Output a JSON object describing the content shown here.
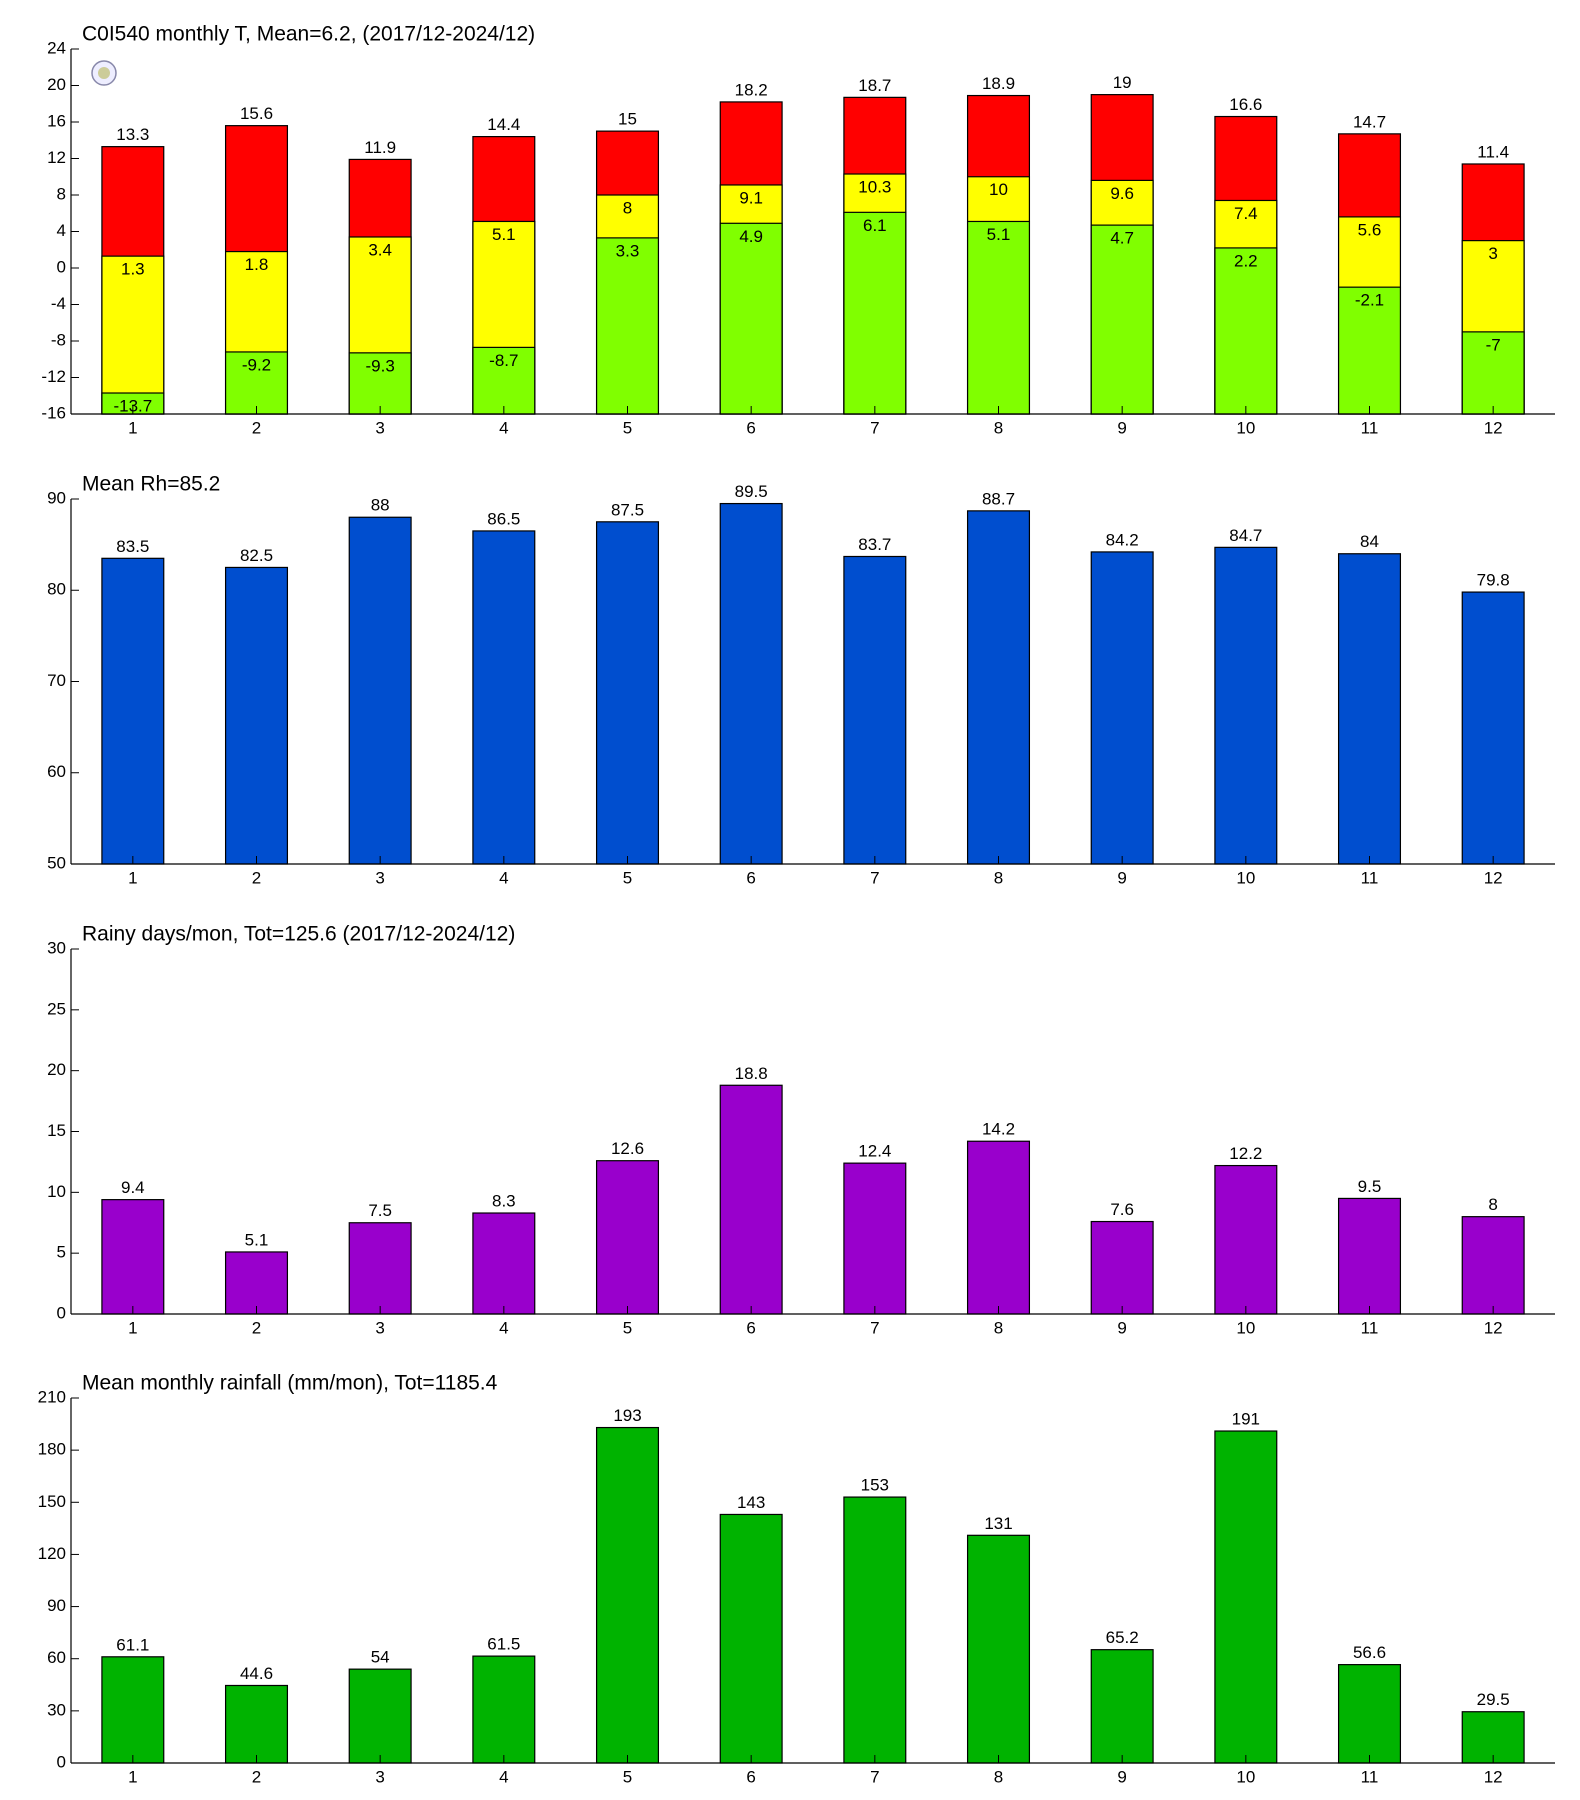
{
  "chart_data": [
    {
      "type": "bar",
      "title": "C0I540 monthly T, Mean=6.2, (2017/12-2024/12)",
      "categories": [
        "1",
        "2",
        "3",
        "4",
        "5",
        "6",
        "7",
        "8",
        "9",
        "10",
        "11",
        "12"
      ],
      "series": [
        {
          "color": "#ff0000",
          "values": [
            13.3,
            15.6,
            11.9,
            14.4,
            15,
            18.2,
            18.7,
            18.9,
            19,
            16.6,
            14.7,
            11.4
          ]
        },
        {
          "color": "#ffff00",
          "values": [
            1.3,
            1.8,
            3.4,
            5.1,
            8,
            9.1,
            10.3,
            10,
            9.6,
            7.4,
            5.6,
            3
          ]
        },
        {
          "color": "#80ff00",
          "values": [
            -13.7,
            -9.2,
            -9.3,
            -8.7,
            3.3,
            4.9,
            6.1,
            5.1,
            4.7,
            2.2,
            -2.1,
            -7
          ]
        }
      ],
      "ylim": [
        -16,
        24
      ],
      "yticks": [
        -16,
        -12,
        -8,
        -4,
        0,
        4,
        8,
        12,
        16,
        20,
        24
      ]
    },
    {
      "type": "bar",
      "title": "Mean Rh=85.2",
      "categories": [
        "1",
        "2",
        "3",
        "4",
        "5",
        "6",
        "7",
        "8",
        "9",
        "10",
        "11",
        "12"
      ],
      "series": [
        {
          "color": "#004ecf",
          "values": [
            83.5,
            82.5,
            88,
            86.5,
            87.5,
            89.5,
            83.7,
            88.7,
            84.2,
            84.7,
            84,
            79.8
          ]
        }
      ],
      "ylim": [
        50,
        90
      ],
      "yticks": [
        50,
        60,
        70,
        80,
        90
      ]
    },
    {
      "type": "bar",
      "title": "Rainy days/mon, Tot=125.6 (2017/12-2024/12)",
      "categories": [
        "1",
        "2",
        "3",
        "4",
        "5",
        "6",
        "7",
        "8",
        "9",
        "10",
        "11",
        "12"
      ],
      "series": [
        {
          "color": "#9900cc",
          "values": [
            9.4,
            5.1,
            7.5,
            8.3,
            12.6,
            18.8,
            12.4,
            14.2,
            7.6,
            12.2,
            9.5,
            8
          ]
        }
      ],
      "ylim": [
        0,
        30
      ],
      "yticks": [
        0,
        5,
        10,
        15,
        20,
        25,
        30
      ]
    },
    {
      "type": "bar",
      "title": "Mean monthly rainfall (mm/mon), Tot=1185.4",
      "categories": [
        "1",
        "2",
        "3",
        "4",
        "5",
        "6",
        "7",
        "8",
        "9",
        "10",
        "11",
        "12"
      ],
      "series": [
        {
          "color": "#00b300",
          "values": [
            61.1,
            44.6,
            54,
            61.5,
            193,
            143,
            153,
            131,
            65.2,
            191,
            56.6,
            29.5
          ]
        }
      ],
      "ylim": [
        0,
        210
      ],
      "yticks": [
        0,
        30,
        60,
        90,
        120,
        150,
        180,
        210
      ]
    }
  ]
}
